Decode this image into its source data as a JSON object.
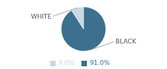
{
  "chart_data": {
    "type": "pie",
    "categories": [
      "BLACK",
      "WHITE"
    ],
    "values": [
      91.0,
      9.0
    ],
    "value_labels": [
      "91.0%",
      "9.0%"
    ],
    "colors": [
      "#3d6f8e",
      "#c8d8e4"
    ],
    "legend": "bottom"
  }
}
